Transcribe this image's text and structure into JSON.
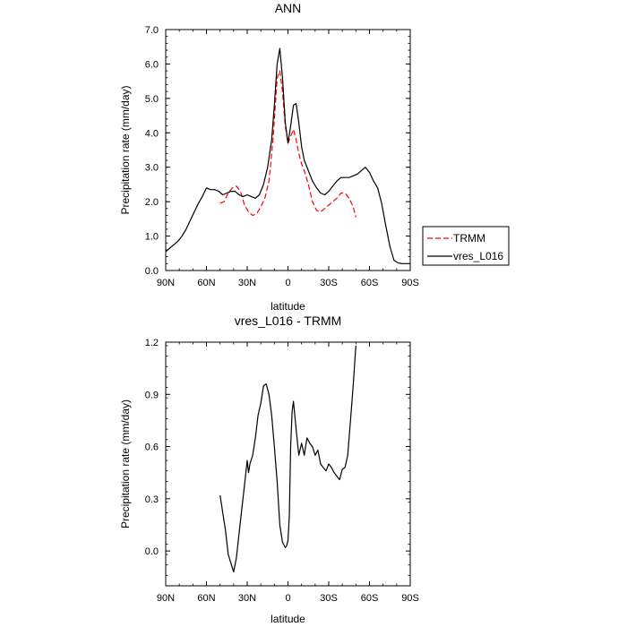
{
  "colors": {
    "trmm": "#ff0000",
    "model": "#000000",
    "axis": "#000000",
    "background": "#ffffff"
  },
  "chart_data": [
    {
      "type": "line",
      "title": "ANN",
      "xlabel": "latitude",
      "ylabel": "Precipitation rate (mm/day)",
      "xlim": [
        90,
        -90
      ],
      "ylim": [
        0,
        7
      ],
      "x_ticks": [
        {
          "value": 90,
          "label": "90N"
        },
        {
          "value": 60,
          "label": "60N"
        },
        {
          "value": 30,
          "label": "30N"
        },
        {
          "value": 0,
          "label": "0"
        },
        {
          "value": -30,
          "label": "30S"
        },
        {
          "value": -60,
          "label": "60S"
        },
        {
          "value": -90,
          "label": "90S"
        }
      ],
      "y_ticks": [
        {
          "value": 0,
          "label": "0.0"
        },
        {
          "value": 1,
          "label": "1.0"
        },
        {
          "value": 2,
          "label": "2.0"
        },
        {
          "value": 3,
          "label": "3.0"
        },
        {
          "value": 4,
          "label": "4.0"
        },
        {
          "value": 5,
          "label": "5.0"
        },
        {
          "value": 6,
          "label": "6.0"
        },
        {
          "value": 7,
          "label": "7.0"
        }
      ],
      "legend": {
        "position": "outside-right",
        "entries": [
          "TRMM",
          "vres_L016"
        ]
      },
      "series": [
        {
          "name": "TRMM",
          "style": "dashed",
          "color": "#ff0000",
          "x": [
            50,
            47,
            44,
            41,
            38,
            35,
            32,
            29,
            26,
            23,
            20,
            17,
            14,
            11,
            8,
            6,
            4,
            2,
            0,
            -2,
            -4,
            -6,
            -8,
            -10,
            -12,
            -15,
            -18,
            -21,
            -24,
            -27,
            -30,
            -33,
            -36,
            -39,
            -42,
            -45,
            -48,
            -50
          ],
          "values": [
            1.95,
            2.0,
            2.25,
            2.4,
            2.45,
            2.3,
            1.9,
            1.7,
            1.6,
            1.65,
            1.85,
            2.1,
            2.6,
            3.8,
            5.6,
            5.8,
            5.2,
            4.2,
            3.7,
            3.9,
            4.1,
            3.8,
            3.4,
            3.1,
            2.9,
            2.5,
            2.0,
            1.75,
            1.7,
            1.8,
            1.9,
            2.0,
            2.1,
            2.25,
            2.25,
            2.1,
            1.85,
            1.55
          ]
        },
        {
          "name": "vres_L016",
          "style": "solid",
          "color": "#000000",
          "x": [
            90,
            87,
            84,
            81,
            78,
            75,
            72,
            69,
            66,
            63,
            60,
            57,
            54,
            51,
            48,
            45,
            42,
            39,
            36,
            33,
            30,
            27,
            24,
            21,
            18,
            15,
            12,
            10,
            8,
            6,
            4,
            2,
            0,
            -2,
            -4,
            -6,
            -8,
            -10,
            -12,
            -15,
            -18,
            -21,
            -24,
            -27,
            -30,
            -33,
            -36,
            -39,
            -42,
            -45,
            -48,
            -51,
            -54,
            -57,
            -60,
            -63,
            -66,
            -69,
            -72,
            -75,
            -78,
            -81,
            -84,
            -87,
            -90
          ],
          "values": [
            0.55,
            0.65,
            0.75,
            0.85,
            1.0,
            1.2,
            1.45,
            1.7,
            1.95,
            2.15,
            2.4,
            2.35,
            2.35,
            2.3,
            2.2,
            2.25,
            2.3,
            2.3,
            2.2,
            2.15,
            2.2,
            2.15,
            2.1,
            2.2,
            2.5,
            3.0,
            3.8,
            4.8,
            6.0,
            6.45,
            5.6,
            4.3,
            3.7,
            4.2,
            4.8,
            4.85,
            4.3,
            3.6,
            3.2,
            2.9,
            2.6,
            2.4,
            2.25,
            2.2,
            2.3,
            2.45,
            2.6,
            2.7,
            2.7,
            2.7,
            2.75,
            2.8,
            2.9,
            3.0,
            2.85,
            2.6,
            2.4,
            1.95,
            1.3,
            0.7,
            0.3,
            0.22,
            0.2,
            0.2,
            0.2
          ]
        }
      ]
    },
    {
      "type": "line",
      "title": "vres_L016 - TRMM",
      "xlabel": "latitude",
      "ylabel": "Precipitation rate (mm/day)",
      "xlim": [
        90,
        -90
      ],
      "ylim": [
        -0.2,
        1.2
      ],
      "x_ticks": [
        {
          "value": 90,
          "label": "90N"
        },
        {
          "value": 60,
          "label": "60N"
        },
        {
          "value": 30,
          "label": "30N"
        },
        {
          "value": 0,
          "label": "0"
        },
        {
          "value": -30,
          "label": "30S"
        },
        {
          "value": -60,
          "label": "60S"
        },
        {
          "value": -90,
          "label": "90S"
        }
      ],
      "y_ticks": [
        {
          "value": 0,
          "label": "0.0"
        },
        {
          "value": 0.3,
          "label": "0.3"
        },
        {
          "value": 0.6,
          "label": "0.6"
        },
        {
          "value": 0.9,
          "label": "0.9"
        },
        {
          "value": 1.2,
          "label": "1.2"
        }
      ],
      "series": [
        {
          "name": "vres_L016 - TRMM",
          "style": "solid",
          "color": "#000000",
          "x": [
            50,
            48,
            46,
            44,
            42,
            40,
            38,
            36,
            34,
            32,
            30,
            29,
            28,
            26,
            24,
            22,
            20,
            18,
            16,
            14,
            12,
            10,
            8,
            6,
            4,
            2,
            1,
            0,
            -1,
            -2,
            -3,
            -4,
            -5,
            -6,
            -8,
            -10,
            -12,
            -14,
            -16,
            -18,
            -20,
            -22,
            -24,
            -26,
            -28,
            -30,
            -32,
            -34,
            -36,
            -38,
            -40,
            -42,
            -44,
            -46,
            -48,
            -50
          ],
          "values": [
            0.32,
            0.22,
            0.12,
            -0.02,
            -0.07,
            -0.12,
            -0.04,
            0.1,
            0.24,
            0.38,
            0.52,
            0.45,
            0.5,
            0.55,
            0.65,
            0.78,
            0.85,
            0.95,
            0.96,
            0.9,
            0.78,
            0.6,
            0.4,
            0.15,
            0.05,
            0.02,
            0.03,
            0.06,
            0.2,
            0.6,
            0.8,
            0.86,
            0.78,
            0.7,
            0.55,
            0.62,
            0.55,
            0.65,
            0.62,
            0.6,
            0.55,
            0.58,
            0.5,
            0.48,
            0.46,
            0.5,
            0.48,
            0.45,
            0.43,
            0.41,
            0.47,
            0.48,
            0.55,
            0.75,
            0.95,
            1.18
          ]
        }
      ]
    }
  ]
}
